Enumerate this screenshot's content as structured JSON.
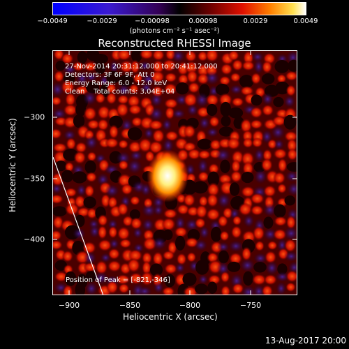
{
  "colorbar": {
    "tick_labels": [
      "−0.0049",
      "−0.0029",
      "−0.00098",
      "0.00098",
      "0.0029",
      "0.0049"
    ],
    "units": "(photons cm⁻² s⁻¹ asec⁻²)"
  },
  "title": "Reconstructed RHESSI Image",
  "info": {
    "time_range": "27-Nov-2014 20:31:12.000 to 20:41:12.000",
    "detectors": "Detectors: 3F 6F 9F, Att 0",
    "energy": "Energy Range: 6.0 - 12.0 keV",
    "method": "Clean    Total counts: 3.04E+04"
  },
  "peak_label": "Position of Peak = [-821,-346]",
  "x_axis": {
    "label": "Heliocentric X (arcsec)",
    "ticks": [
      "−900",
      "−850",
      "−800",
      "−750"
    ]
  },
  "y_axis": {
    "label": "Heliocentric Y (arcsec)",
    "ticks": [
      "−300",
      "−350",
      "−400"
    ]
  },
  "footer_date": "13-Aug-2017 20:00",
  "colormap": {
    "low": "#0000ff",
    "mid": "#000000",
    "high": "#ffffff"
  }
}
